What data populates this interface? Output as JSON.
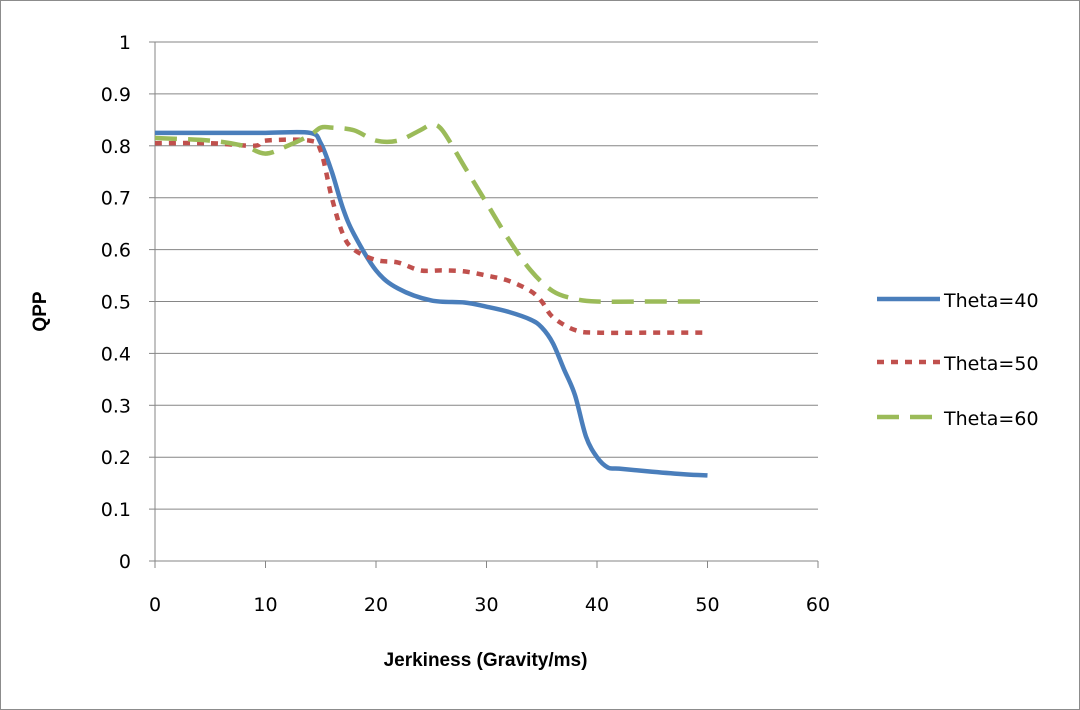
{
  "chart_data": {
    "type": "line",
    "title": "",
    "xlabel": "Jerkiness (Gravity/ms)",
    "ylabel": "QPP",
    "xlim": [
      0,
      60
    ],
    "ylim": [
      0,
      1
    ],
    "x_ticks": [
      "0",
      "10",
      "20",
      "30",
      "40",
      "50",
      "60"
    ],
    "y_ticks": [
      "0",
      "0.1",
      "0.2",
      "0.3",
      "0.4",
      "0.5",
      "0.6",
      "0.7",
      "0.8",
      "0.9",
      "1"
    ],
    "grid": "horizontal",
    "legend_position": "right",
    "series": [
      {
        "name": "Theta=40",
        "color": "#4a7ebb",
        "dash": "solid",
        "x": [
          0,
          5,
          10,
          14,
          15,
          16,
          17,
          18,
          20,
          22,
          25,
          28,
          30,
          32,
          34,
          35,
          36,
          37,
          38,
          39,
          40,
          41,
          42,
          45,
          48,
          50
        ],
        "y": [
          0.825,
          0.825,
          0.825,
          0.825,
          0.805,
          0.75,
          0.68,
          0.63,
          0.56,
          0.525,
          0.502,
          0.498,
          0.49,
          0.48,
          0.465,
          0.45,
          0.42,
          0.37,
          0.32,
          0.24,
          0.2,
          0.18,
          0.178,
          0.172,
          0.167,
          0.165
        ]
      },
      {
        "name": "Theta=50",
        "color": "#c0504d",
        "dash": "dotted",
        "x": [
          0,
          5,
          9,
          10,
          14,
          15,
          16,
          17,
          18,
          20,
          22,
          24,
          26,
          28,
          30,
          32,
          34,
          35,
          36,
          38,
          40,
          45,
          50
        ],
        "y": [
          0.805,
          0.805,
          0.8,
          0.81,
          0.81,
          0.79,
          0.7,
          0.63,
          0.6,
          0.58,
          0.575,
          0.56,
          0.56,
          0.558,
          0.55,
          0.54,
          0.52,
          0.5,
          0.47,
          0.445,
          0.44,
          0.44,
          0.44
        ]
      },
      {
        "name": "Theta=60",
        "color": "#9bbb59",
        "dash": "dashed",
        "x": [
          0,
          5,
          8,
          10,
          12,
          14,
          15,
          16,
          18,
          20,
          22,
          24,
          25,
          26,
          28,
          30,
          32,
          34,
          36,
          38,
          40,
          45,
          50
        ],
        "y": [
          0.815,
          0.81,
          0.8,
          0.785,
          0.8,
          0.82,
          0.835,
          0.835,
          0.83,
          0.81,
          0.81,
          0.83,
          0.84,
          0.83,
          0.76,
          0.69,
          0.62,
          0.56,
          0.52,
          0.505,
          0.5,
          0.5,
          0.5
        ]
      }
    ]
  }
}
